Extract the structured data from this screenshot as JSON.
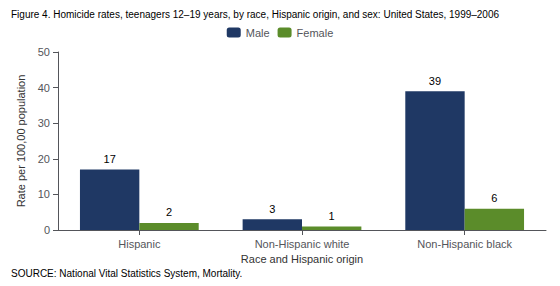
{
  "chart_data": {
    "type": "bar",
    "title": "Figure 4. Homicide rates, teenagers 12–19 years, by race, Hispanic origin, and sex: United States, 1999–2006",
    "source": "SOURCE: National Vital Statistics System, Mortality.",
    "categories": [
      "Hispanic",
      "Non-Hispanic white",
      "Non-Hispanic black"
    ],
    "series": [
      {
        "name": "Male",
        "color": "#1F3864",
        "values": [
          17,
          3,
          39
        ]
      },
      {
        "name": "Female",
        "color": "#5B8C2A",
        "values": [
          2,
          1,
          6
        ]
      }
    ],
    "xlabel": "Race and Hispanic origin",
    "ylabel": "Rate per 100,00 population",
    "ylim": [
      0,
      50
    ],
    "yticks": [
      0,
      10,
      20,
      30,
      40,
      50
    ],
    "data_labels": true,
    "legend": "top",
    "grid": false
  }
}
